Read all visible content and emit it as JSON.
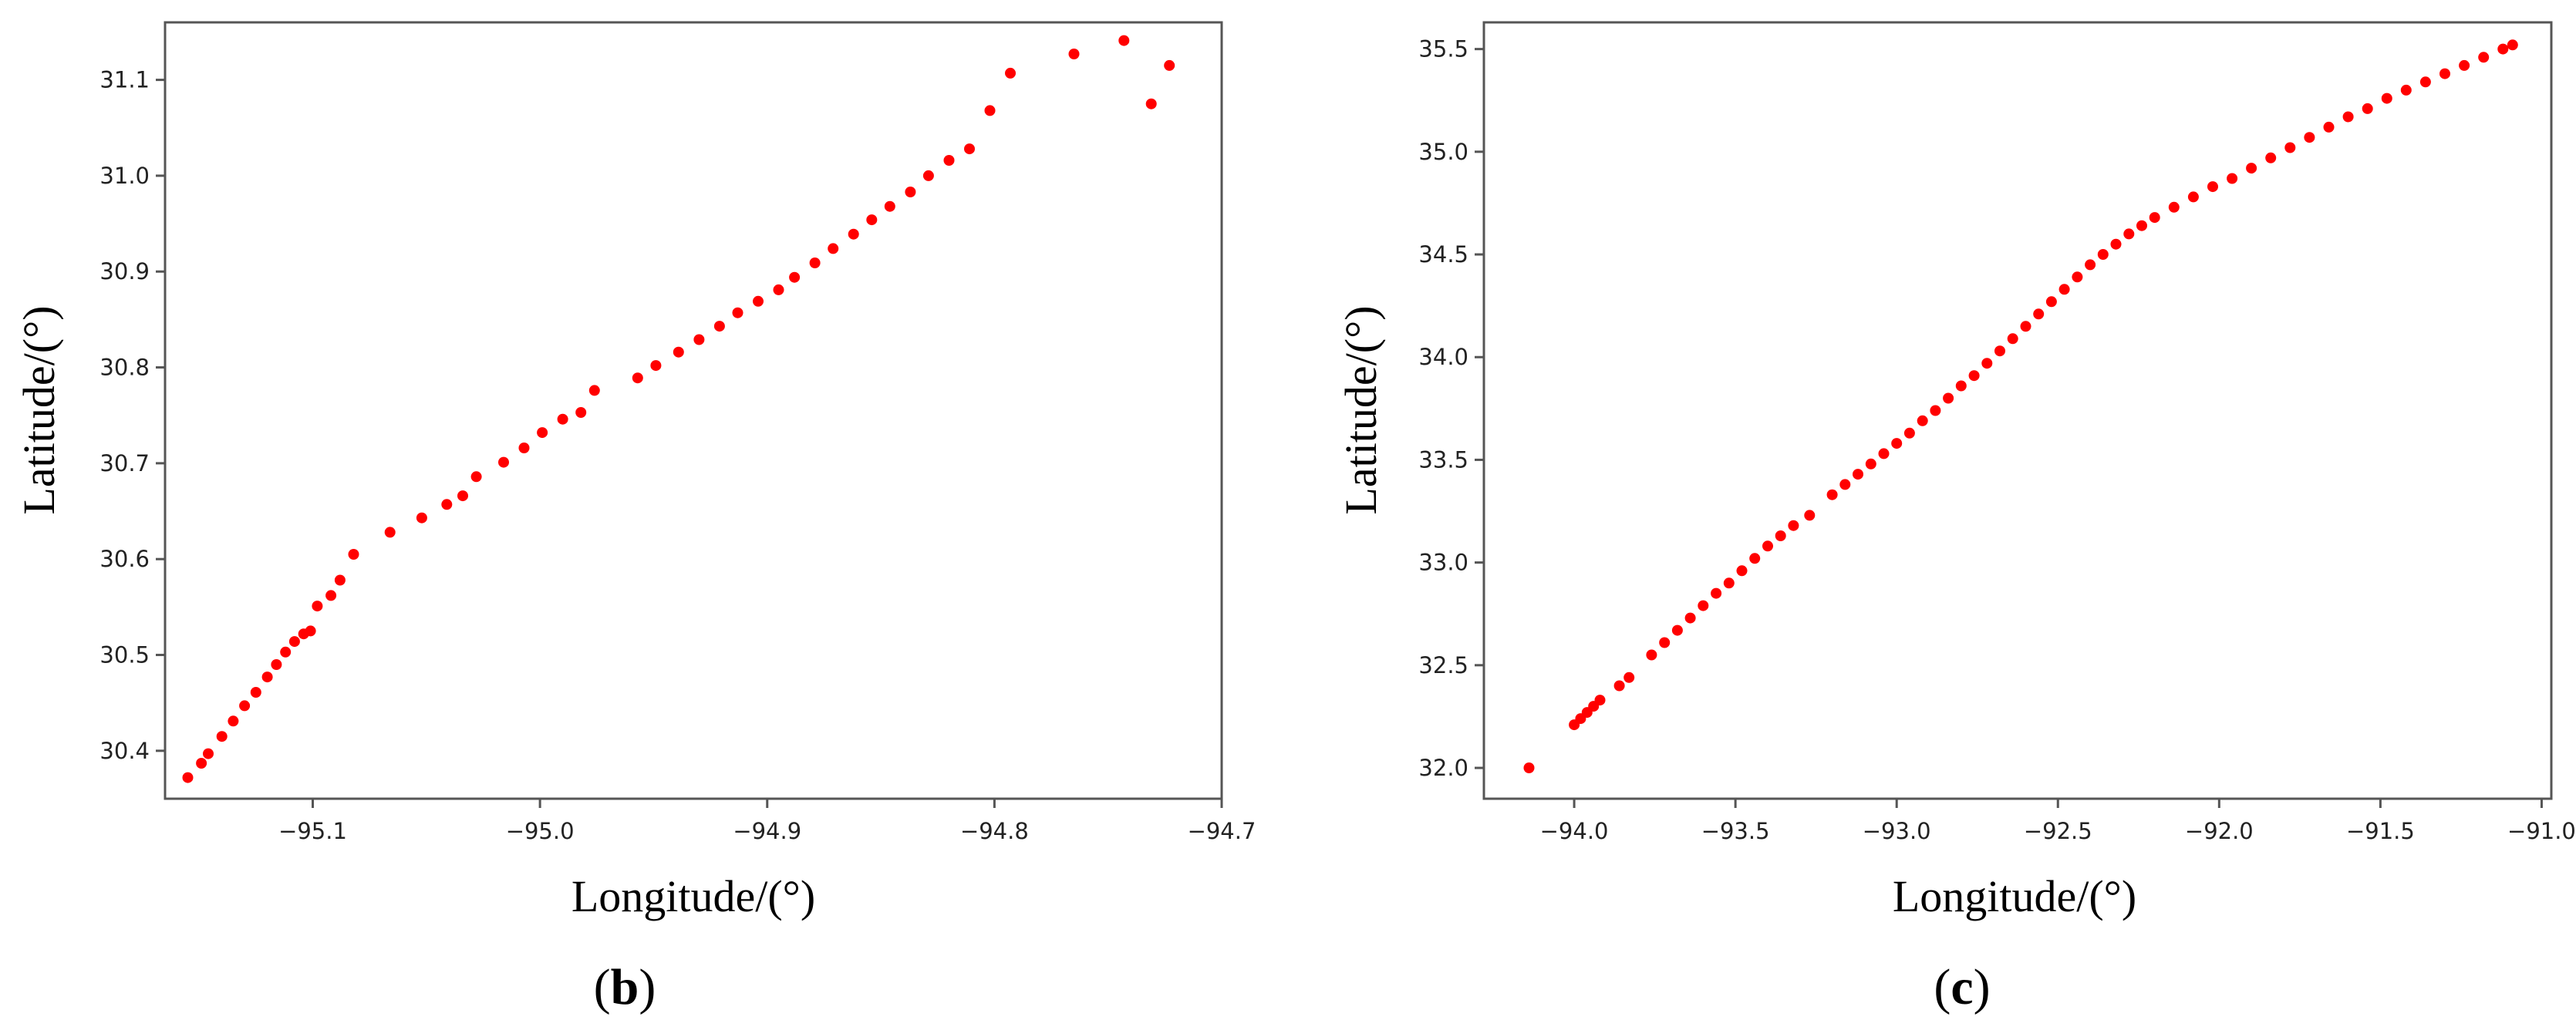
{
  "chart_data": [
    {
      "type": "scatter",
      "panel_label": "b",
      "xlabel": "Longitude/(°)",
      "ylabel": "Latitude/(°)",
      "xlim": [
        -95.165,
        -94.7
      ],
      "ylim": [
        30.35,
        31.16
      ],
      "xticks": [
        -95.1,
        -95.0,
        -94.9,
        -94.8,
        -94.7
      ],
      "xtick_labels": [
        "−95.1",
        "−95.0",
        "−94.9",
        "−94.8",
        "−94.7"
      ],
      "yticks": [
        30.4,
        30.5,
        30.6,
        30.7,
        30.8,
        30.9,
        31.0,
        31.1
      ],
      "ytick_labels": [
        "30.4",
        "30.5",
        "30.6",
        "30.7",
        "30.8",
        "30.9",
        "31.0",
        "31.1"
      ],
      "grid": false,
      "color": "#ff0000",
      "series": [
        {
          "x": [
            -95.155,
            -95.149,
            -95.146,
            -95.14,
            -95.135,
            -95.13,
            -95.125,
            -95.12,
            -95.116,
            -95.112,
            -95.108,
            -95.104,
            -95.101,
            -95.098,
            -95.092,
            -95.088,
            -95.082,
            -95.066,
            -95.052,
            -95.041,
            -95.034,
            -95.028,
            -95.016,
            -95.007,
            -94.999,
            -94.99,
            -94.982,
            -94.976,
            -94.957,
            -94.949,
            -94.939,
            -94.93,
            -94.921,
            -94.913,
            -94.904,
            -94.895,
            -94.888,
            -94.879,
            -94.871,
            -94.862,
            -94.854,
            -94.846,
            -94.837,
            -94.829,
            -94.82,
            -94.811,
            -94.802,
            -94.793,
            -94.765,
            -94.743,
            -94.731,
            -94.723
          ],
          "y": [
            30.372,
            30.387,
            30.397,
            30.415,
            30.431,
            30.447,
            30.461,
            30.477,
            30.49,
            30.503,
            30.514,
            30.522,
            30.525,
            30.551,
            30.562,
            30.578,
            30.605,
            30.628,
            30.643,
            30.657,
            30.666,
            30.686,
            30.701,
            30.716,
            30.732,
            30.746,
            30.753,
            30.776,
            30.789,
            30.802,
            30.816,
            30.829,
            30.843,
            30.857,
            30.869,
            30.881,
            30.894,
            30.909,
            30.924,
            30.939,
            30.954,
            30.968,
            30.983,
            31.0,
            31.016,
            31.028,
            31.068,
            31.107,
            31.127,
            31.141,
            31.075,
            31.115
          ]
        }
      ]
    },
    {
      "type": "scatter",
      "panel_label": "c",
      "xlabel": "Longitude/(°)",
      "ylabel": "Latitude/(°)",
      "xlim": [
        -94.28,
        -90.97
      ],
      "ylim": [
        31.85,
        35.63
      ],
      "xticks": [
        -94.0,
        -93.5,
        -93.0,
        -92.5,
        -92.0,
        -91.5,
        -91.0
      ],
      "xtick_labels": [
        "−94.0",
        "−93.5",
        "−93.0",
        "−92.5",
        "−92.0",
        "−91.5",
        "−91.0"
      ],
      "yticks": [
        32.0,
        32.5,
        33.0,
        33.5,
        34.0,
        34.5,
        35.0,
        35.5
      ],
      "ytick_labels": [
        "32.0",
        "32.5",
        "33.0",
        "33.5",
        "34.0",
        "34.5",
        "35.0",
        "35.5"
      ],
      "grid": false,
      "color": "#ff0000",
      "series": [
        {
          "x": [
            -94.14,
            -94.0,
            -93.98,
            -93.96,
            -93.94,
            -93.92,
            -93.86,
            -93.83,
            -93.76,
            -93.72,
            -93.68,
            -93.64,
            -93.6,
            -93.56,
            -93.52,
            -93.48,
            -93.44,
            -93.4,
            -93.36,
            -93.32,
            -93.27,
            -93.2,
            -93.16,
            -93.12,
            -93.08,
            -93.04,
            -93.0,
            -92.96,
            -92.92,
            -92.88,
            -92.84,
            -92.8,
            -92.76,
            -92.72,
            -92.68,
            -92.64,
            -92.6,
            -92.56,
            -92.52,
            -92.48,
            -92.44,
            -92.4,
            -92.36,
            -92.32,
            -92.28,
            -92.24,
            -92.2,
            -92.14,
            -92.08,
            -92.02,
            -91.96,
            -91.9,
            -91.84,
            -91.78,
            -91.72,
            -91.66,
            -91.6,
            -91.54,
            -91.48,
            -91.42,
            -91.36,
            -91.3,
            -91.24,
            -91.18,
            -91.12,
            -91.09
          ],
          "y": [
            32.0,
            32.21,
            32.24,
            32.27,
            32.3,
            32.33,
            32.4,
            32.44,
            32.55,
            32.61,
            32.67,
            32.73,
            32.79,
            32.85,
            32.9,
            32.96,
            33.02,
            33.08,
            33.13,
            33.18,
            33.23,
            33.33,
            33.38,
            33.43,
            33.48,
            33.53,
            33.58,
            33.63,
            33.69,
            33.74,
            33.8,
            33.86,
            33.91,
            33.97,
            34.03,
            34.09,
            34.15,
            34.21,
            34.27,
            34.33,
            34.39,
            34.45,
            34.5,
            34.55,
            34.6,
            34.64,
            34.68,
            34.73,
            34.78,
            34.83,
            34.87,
            34.92,
            34.97,
            35.02,
            35.07,
            35.12,
            35.17,
            35.21,
            35.26,
            35.3,
            35.34,
            35.38,
            35.42,
            35.46,
            35.5,
            35.52
          ]
        }
      ]
    }
  ]
}
